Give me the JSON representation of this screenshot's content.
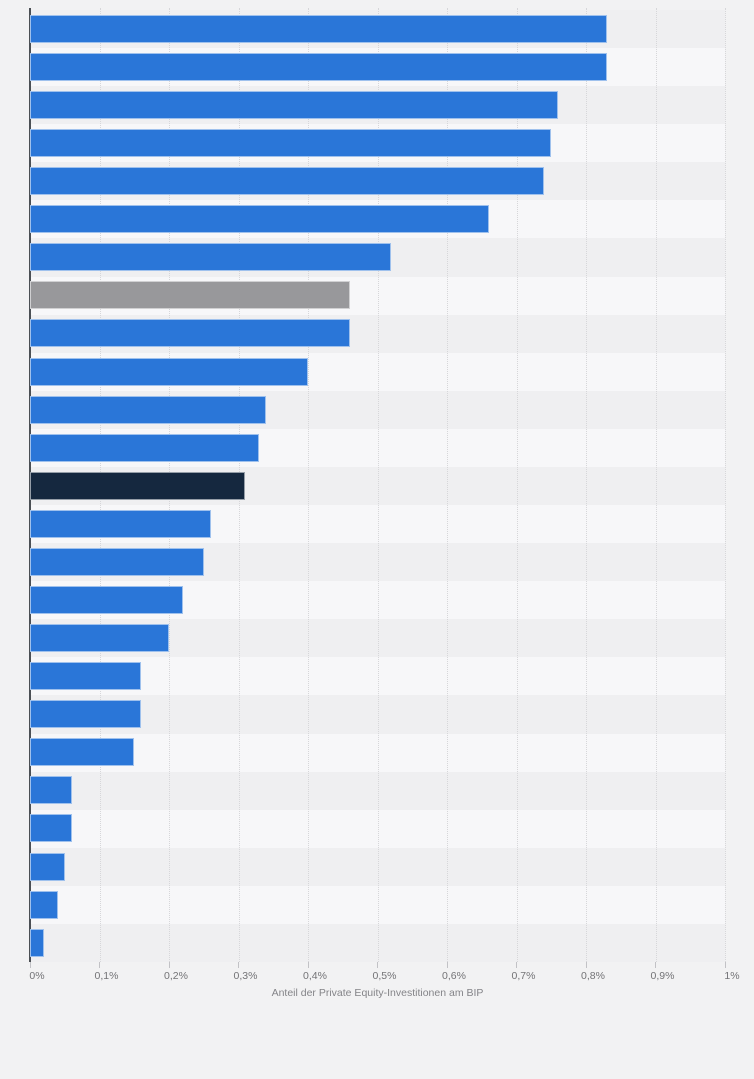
{
  "colors": {
    "background": "#f2f2f3",
    "stripe_dark": "#efeff1",
    "stripe_light": "#f7f7f9",
    "bar_default": "#2a76d8",
    "bar_gray": "#98989b",
    "bar_navy": "#15283f",
    "axis_line": "#4b4f54",
    "gridline": "#d6d6d9",
    "tick_text": "#737376",
    "axis_title_text": "#848488"
  },
  "chart_data": {
    "type": "bar",
    "orientation": "horizontal",
    "title": "",
    "xlabel": "Anteil der Private Equity-Investitionen am BIP",
    "ylabel": "",
    "unit": "% des BIP",
    "xlim": [
      0,
      1
    ],
    "grid": "vertical-dotted",
    "legend": "none",
    "x_tick_values": [
      0,
      0.1,
      0.2,
      0.3,
      0.4,
      0.5,
      0.6,
      0.7,
      0.8,
      0.9,
      1
    ],
    "x_tick_labels": [
      "0%",
      "0,1%",
      "0,2%",
      "0,3%",
      "0,4%",
      "0,5%",
      "0,6%",
      "0,7%",
      "0,8%",
      "0,9%",
      "1%"
    ],
    "values": [
      0.83,
      0.83,
      0.76,
      0.75,
      0.74,
      0.66,
      0.52,
      0.46,
      0.46,
      0.4,
      0.34,
      0.33,
      0.31,
      0.26,
      0.25,
      0.22,
      0.2,
      0.16,
      0.16,
      0.15,
      0.06,
      0.06,
      0.05,
      0.04,
      0.02
    ],
    "highlight_gray_index": 7,
    "highlight_navy_index": 12
  }
}
